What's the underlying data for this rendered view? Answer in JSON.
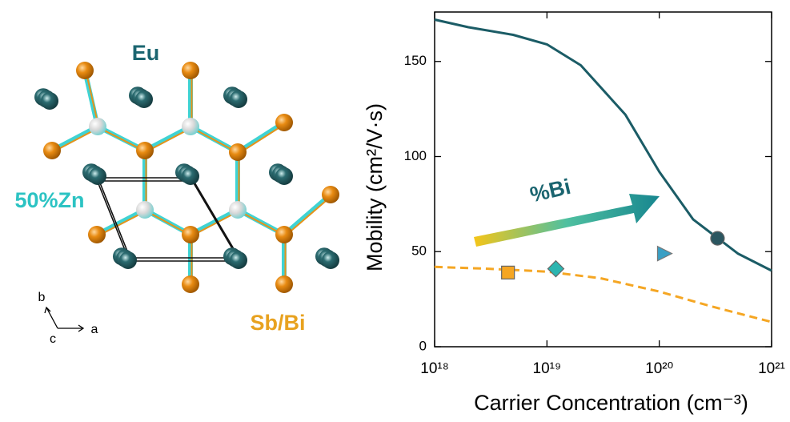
{
  "structure": {
    "labels": [
      "Eu",
      "50%Zn",
      "Sb/Bi"
    ],
    "axes": [
      "b",
      "c",
      "a"
    ]
  },
  "chart_data": {
    "type": "line",
    "ylabel": "Mobility (cm²/V·s)",
    "xlabel": "Carrier Concentration (cm⁻³)",
    "log_x": true,
    "xlim": [
      1e+18,
      1e+21
    ],
    "xticks": [
      {
        "value": 1e+18,
        "label": "10¹⁸"
      },
      {
        "value": 1e+19,
        "label": "10¹⁹"
      },
      {
        "value": 1e+20,
        "label": "10²⁰"
      },
      {
        "value": 1e+21,
        "label": "10²¹"
      }
    ],
    "ylim": [
      0,
      176
    ],
    "yticks": [
      0,
      50,
      100,
      150
    ],
    "annotations": [
      "%Bi"
    ],
    "series": [
      {
        "color": "#1b5c66",
        "dash": false,
        "x": [
          1e+18,
          2e+18,
          5e+18,
          1e+19,
          2e+19,
          5e+19,
          1e+20,
          2e+20,
          5e+20,
          1e+21
        ],
        "values": [
          172,
          168,
          164,
          159,
          148,
          122,
          92,
          67,
          49,
          40
        ]
      },
      {
        "color": "#f5a623",
        "dash": true,
        "x": [
          1e+18,
          3e+18,
          1e+19,
          3e+19,
          1e+20,
          3e+20,
          1e+21
        ],
        "values": [
          42,
          41,
          39.5,
          36,
          29,
          21,
          13
        ]
      },
      {
        "marker": "square",
        "color": "#f5a623",
        "x": [
          4.5e+18
        ],
        "values": [
          39
        ]
      },
      {
        "marker": "diamond",
        "color": "#2bb5b0",
        "x": [
          1.2e+19
        ],
        "values": [
          41
        ]
      },
      {
        "marker": "triangle",
        "color": "#3a9fc4",
        "x": [
          1.1e+20
        ],
        "values": [
          49
        ]
      },
      {
        "marker": "circle",
        "color": "#2b5660",
        "x": [
          3.3e+20
        ],
        "values": [
          57
        ]
      }
    ]
  }
}
